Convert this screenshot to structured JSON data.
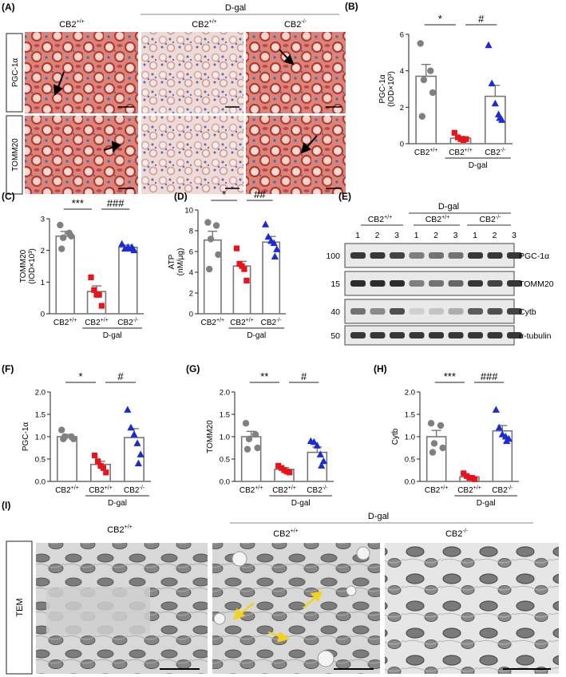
{
  "panels": {
    "A": {
      "label": "(A)",
      "group_label": "D-gal",
      "col_headers": [
        "CB2",
        "CB2",
        "CB2"
      ],
      "col_sups": [
        "+/+",
        "+/+",
        "-/-"
      ],
      "row_labels": [
        "PGC-1α",
        "TOMM20"
      ]
    },
    "E": {
      "label": "(E)",
      "group_label": "D-gal",
      "genotypes": [
        "CB2",
        "CB2",
        "CB2"
      ],
      "genotype_sups": [
        "+/+",
        "+/+",
        "-/-"
      ],
      "lanes": [
        "1",
        "2",
        "3",
        "1",
        "2",
        "3",
        "1",
        "2",
        "3"
      ],
      "bands": [
        {
          "name": "PGC-1α",
          "kda": "100"
        },
        {
          "name": "TOMM20",
          "kda": "15"
        },
        {
          "name": "Cytb",
          "kda": "40"
        },
        {
          "name": "α-tubulin",
          "kda": "50"
        }
      ]
    },
    "I": {
      "label": "(I)",
      "group_label": "D-gal",
      "row_label": "TEM",
      "col_headers": [
        "CB2",
        "CB2",
        "CB2"
      ],
      "col_sups": [
        "+/+",
        "+/+",
        "-/-"
      ]
    }
  },
  "colors": {
    "wt": "#808080",
    "dgal": "#e8131b",
    "ko": "#1a2bd6",
    "arrow_em": "#f2d31b"
  },
  "chart_data": [
    {
      "id": "B",
      "label": "(B)",
      "type": "bar",
      "categories": [
        "CB2+/+",
        "CB2+/+",
        "CB2-/-"
      ],
      "group_label": "D-gal",
      "ylabel": "PGC-1α",
      "ylabel2": "(IOD×10³)",
      "ylim": [
        0,
        6
      ],
      "yticks": [
        "0",
        "2",
        "4",
        "6"
      ],
      "means": [
        3.7,
        0.3,
        2.6
      ],
      "sems": [
        0.65,
        0.1,
        0.6
      ],
      "points": [
        [
          5.5,
          4.0,
          3.5,
          2.8,
          1.5
        ],
        [
          0.6,
          0.35,
          0.25,
          0.2,
          0.25
        ],
        [
          5.4,
          3.3,
          2.2,
          1.6,
          1.3,
          1.4
        ]
      ],
      "markers": [
        "circle",
        "square",
        "triangle"
      ],
      "sig": [
        {
          "from": 0,
          "to": 1,
          "text": "*"
        },
        {
          "from": 1,
          "to": 2,
          "text": "#"
        }
      ]
    },
    {
      "id": "C",
      "label": "(C)",
      "type": "bar",
      "categories": [
        "CB2+/+",
        "CB2+/+",
        "CB2-/-"
      ],
      "group_label": "D-gal",
      "ylabel": "TOMM20",
      "ylabel2": "(IOD×10³)",
      "ylim": [
        0,
        3
      ],
      "yticks": [
        "0",
        "1",
        "2",
        "3"
      ],
      "means": [
        2.45,
        0.7,
        2.1
      ],
      "sems": [
        0.15,
        0.18,
        0.07
      ],
      "points": [
        [
          2.8,
          2.55,
          2.4,
          2.45,
          2.05
        ],
        [
          1.15,
          0.75,
          0.6,
          0.6,
          0.25
        ],
        [
          2.2,
          2.05,
          2.1,
          2.05,
          2.0,
          2.1
        ]
      ],
      "markers": [
        "circle",
        "square",
        "triangle"
      ],
      "sig": [
        {
          "from": 0,
          "to": 1,
          "text": "***"
        },
        {
          "from": 1,
          "to": 2,
          "text": "###"
        }
      ]
    },
    {
      "id": "D",
      "label": "(D)",
      "type": "bar",
      "categories": [
        "CB2+/+",
        "CB2+/+",
        "CB2-/-"
      ],
      "group_label": "D-gal",
      "ylabel": "ATP",
      "ylabel2": "(nM/μg)",
      "ylim": [
        0,
        10
      ],
      "yticks": [
        "0",
        "2",
        "4",
        "6",
        "8",
        "10"
      ],
      "means": [
        7.1,
        4.6,
        6.9
      ],
      "sems": [
        0.85,
        0.45,
        0.55
      ],
      "points": [
        [
          8.8,
          8.5,
          7.2,
          5.7,
          4.3
        ],
        [
          6.3,
          4.8,
          4.6,
          4.3,
          3.2
        ],
        [
          8.6,
          7.4,
          7.0,
          6.8,
          6.2,
          5.5
        ]
      ],
      "markers": [
        "circle",
        "square",
        "triangle"
      ],
      "sig": [
        {
          "from": 0,
          "to": 1,
          "text": "*"
        },
        {
          "from": 1,
          "to": 2,
          "text": "##"
        }
      ]
    },
    {
      "id": "F",
      "label": "(F)",
      "type": "bar",
      "categories": [
        "CB2+/+",
        "CB2+/+",
        "CB2-/-"
      ],
      "group_label": "D-gal",
      "ylabel": "PGC-1α",
      "ylabel2": "",
      "ylim": [
        0,
        2
      ],
      "yticks": [
        "0.0",
        "0.5",
        "1.0",
        "1.5",
        "2.0"
      ],
      "means": [
        1.0,
        0.38,
        0.98
      ],
      "sems": [
        0.05,
        0.07,
        0.2
      ],
      "points": [
        [
          1.15,
          1.0,
          1.0,
          0.95,
          0.95
        ],
        [
          0.58,
          0.45,
          0.35,
          0.3,
          0.2
        ],
        [
          1.6,
          1.2,
          1.05,
          0.85,
          0.6,
          0.4
        ]
      ],
      "markers": [
        "circle",
        "square",
        "triangle"
      ],
      "sig": [
        {
          "from": 0,
          "to": 1,
          "text": "*"
        },
        {
          "from": 1,
          "to": 2,
          "text": "#"
        }
      ]
    },
    {
      "id": "G",
      "label": "(G)",
      "type": "bar",
      "categories": [
        "CB2+/+",
        "CB2+/+",
        "CB2-/-"
      ],
      "group_label": "D-gal",
      "ylabel": "TOMM20",
      "ylabel2": "",
      "ylim": [
        0,
        2
      ],
      "yticks": [
        "0.0",
        "0.5",
        "1.0",
        "1.5",
        "2.0"
      ],
      "means": [
        1.0,
        0.27,
        0.65
      ],
      "sems": [
        0.12,
        0.04,
        0.12
      ],
      "points": [
        [
          1.3,
          1.05,
          0.95,
          0.75,
          0.72
        ],
        [
          0.35,
          0.3,
          0.25,
          0.22,
          0.2
        ],
        [
          0.9,
          0.88,
          0.8,
          0.6,
          0.45,
          0.35
        ]
      ],
      "markers": [
        "circle",
        "square",
        "triangle"
      ],
      "sig": [
        {
          "from": 0,
          "to": 1,
          "text": "**"
        },
        {
          "from": 1,
          "to": 2,
          "text": "#"
        }
      ]
    },
    {
      "id": "H",
      "label": "(H)",
      "type": "bar",
      "categories": [
        "CB2+/+",
        "CB2+/+",
        "CB2-/-"
      ],
      "group_label": "D-gal",
      "ylabel": "Cytb",
      "ylabel2": "",
      "ylim": [
        0,
        2
      ],
      "yticks": [
        "0.0",
        "0.5",
        "1.0",
        "1.5",
        "2.0"
      ],
      "means": [
        1.0,
        0.1,
        1.13
      ],
      "sems": [
        0.14,
        0.02,
        0.12
      ],
      "points": [
        [
          1.3,
          1.25,
          0.85,
          0.75,
          0.65
        ],
        [
          0.18,
          0.12,
          0.08,
          0.08,
          0.05
        ],
        [
          1.6,
          1.2,
          1.05,
          1.0,
          0.95,
          0.9
        ]
      ],
      "markers": [
        "circle",
        "square",
        "triangle"
      ],
      "sig": [
        {
          "from": 0,
          "to": 1,
          "text": "***"
        },
        {
          "from": 1,
          "to": 2,
          "text": "###"
        }
      ]
    }
  ]
}
